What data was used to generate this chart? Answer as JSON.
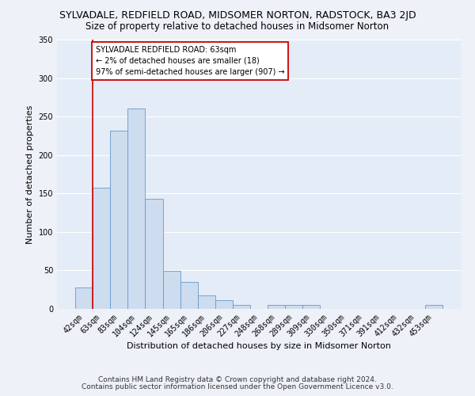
{
  "title": "SYLVADALE, REDFIELD ROAD, MIDSOMER NORTON, RADSTOCK, BA3 2JD",
  "subtitle": "Size of property relative to detached houses in Midsomer Norton",
  "xlabel": "Distribution of detached houses by size in Midsomer Norton",
  "ylabel": "Number of detached properties",
  "bar_labels": [
    "42sqm",
    "63sqm",
    "83sqm",
    "104sqm",
    "124sqm",
    "145sqm",
    "165sqm",
    "186sqm",
    "206sqm",
    "227sqm",
    "248sqm",
    "268sqm",
    "289sqm",
    "309sqm",
    "330sqm",
    "350sqm",
    "371sqm",
    "391sqm",
    "412sqm",
    "432sqm",
    "453sqm"
  ],
  "bar_values": [
    28,
    157,
    232,
    260,
    143,
    49,
    35,
    18,
    11,
    5,
    0,
    5,
    5,
    5,
    0,
    0,
    0,
    0,
    0,
    0,
    5
  ],
  "bar_color": "#cddcee",
  "bar_edge_color": "#6699cc",
  "vline_x_index": 1,
  "vline_color": "#cc0000",
  "ylim": [
    0,
    350
  ],
  "yticks": [
    0,
    50,
    100,
    150,
    200,
    250,
    300,
    350
  ],
  "annotation_text": "SYLVADALE REDFIELD ROAD: 63sqm\n← 2% of detached houses are smaller (18)\n97% of semi-detached houses are larger (907) →",
  "annotation_box_color": "#ffffff",
  "annotation_box_edge": "#cc0000",
  "footnote1": "Contains HM Land Registry data © Crown copyright and database right 2024.",
  "footnote2": "Contains public sector information licensed under the Open Government Licence v3.0.",
  "bg_color": "#eef2f8",
  "plot_bg_color": "#e4ecf7",
  "grid_color": "#ffffff",
  "title_fontsize": 9,
  "subtitle_fontsize": 8.5,
  "axis_label_fontsize": 8,
  "tick_fontsize": 7,
  "footnote_fontsize": 6.5
}
